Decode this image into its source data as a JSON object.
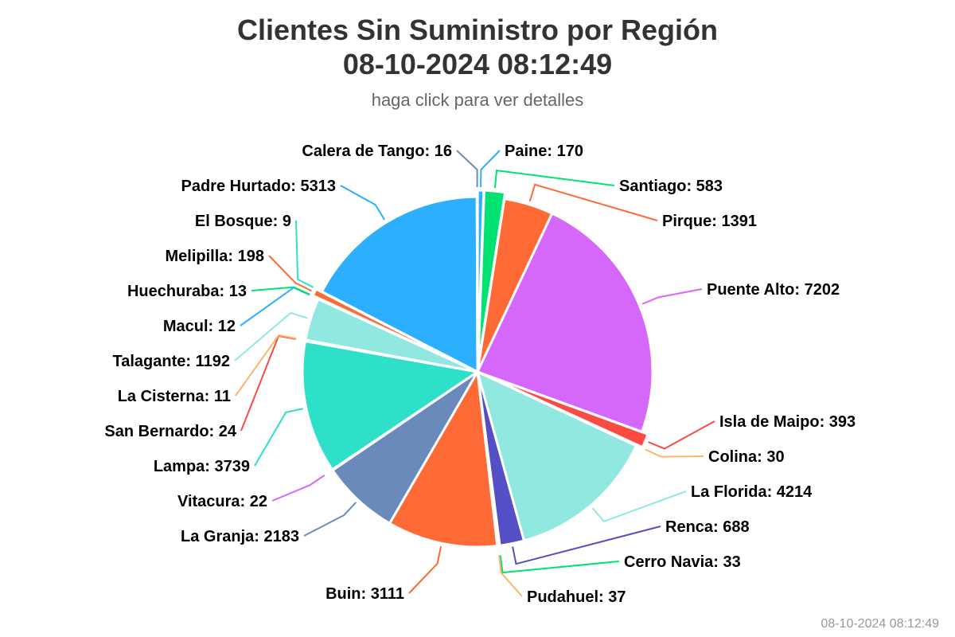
{
  "chart_data": {
    "type": "pie",
    "title": "Clientes Sin Suministro por Región",
    "title_line2": "08-10-2024 08:12:49",
    "subtitle": "haga click para ver detalles",
    "footer_timestamp": "08-10-2024 08:12:49",
    "legend": "none",
    "slices": [
      {
        "name": "Paine",
        "value": 170,
        "color": "#2caffe"
      },
      {
        "name": "Santiago",
        "value": 583,
        "color": "#00e272"
      },
      {
        "name": "Pirque",
        "value": 1391,
        "color": "#fe6a35"
      },
      {
        "name": "Puente Alto",
        "value": 7202,
        "color": "#d568fb"
      },
      {
        "name": "Isla de Maipo",
        "value": 393,
        "color": "#fa4b42"
      },
      {
        "name": "Colina",
        "value": 30,
        "color": "#feb56a"
      },
      {
        "name": "La Florida",
        "value": 4214,
        "color": "#91e8e1"
      },
      {
        "name": "Renca",
        "value": 688,
        "color": "#544fc5"
      },
      {
        "name": "Cerro Navia",
        "value": 33,
        "color": "#00e272"
      },
      {
        "name": "Pudahuel",
        "value": 37,
        "color": "#feb56a"
      },
      {
        "name": "Buin",
        "value": 3111,
        "color": "#fe6a35"
      },
      {
        "name": "La Granja",
        "value": 2183,
        "color": "#6b8abc"
      },
      {
        "name": "Vitacura",
        "value": 22,
        "color": "#d568fb"
      },
      {
        "name": "Lampa",
        "value": 3739,
        "color": "#2ee0ca"
      },
      {
        "name": "San Bernardo",
        "value": 24,
        "color": "#fa4b42"
      },
      {
        "name": "La Cisterna",
        "value": 11,
        "color": "#feb56a"
      },
      {
        "name": "Talagante",
        "value": 1192,
        "color": "#91e8e1"
      },
      {
        "name": "Macul",
        "value": 12,
        "color": "#2caffe"
      },
      {
        "name": "Huechuraba",
        "value": 13,
        "color": "#00e272"
      },
      {
        "name": "Melipilla",
        "value": 198,
        "color": "#fe6a35"
      },
      {
        "name": "El Bosque",
        "value": 9,
        "color": "#2ee0ca"
      },
      {
        "name": "Padre Hurtado",
        "value": 5313,
        "color": "#2caffe"
      },
      {
        "name": "Calera de Tango",
        "value": 16,
        "color": "#6b8abc"
      }
    ]
  }
}
